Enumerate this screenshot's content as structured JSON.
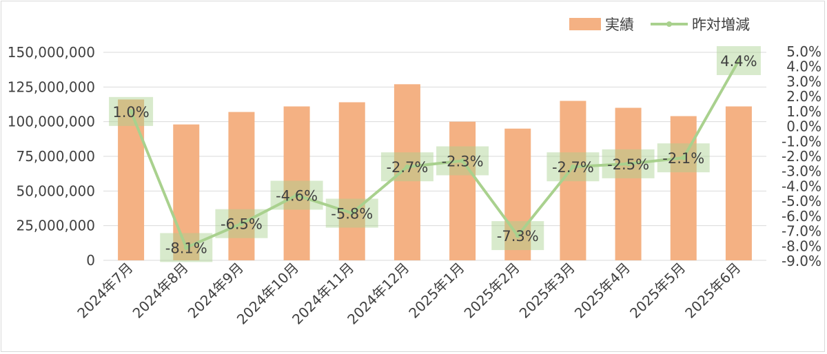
{
  "chart_data": {
    "type": "bar",
    "categories": [
      "2024年7月",
      "2024年8月",
      "2024年9月",
      "2024年10月",
      "2024年11月",
      "2024年12月",
      "2025年1月",
      "2025年2月",
      "2025年3月",
      "2025年4月",
      "2025年5月",
      "2025年6月"
    ],
    "series": [
      {
        "name": "実績",
        "type": "bar",
        "axis": "left",
        "color": "#f4b183",
        "values": [
          116000000,
          98000000,
          107000000,
          111000000,
          114000000,
          127000000,
          100000000,
          95000000,
          115000000,
          110000000,
          104000000,
          111000000
        ]
      },
      {
        "name": "昨対増減",
        "type": "line",
        "axis": "right",
        "color": "#a9d18e",
        "values": [
          1.0,
          -8.1,
          -6.5,
          -4.6,
          -5.8,
          -2.7,
          -2.3,
          -7.3,
          -2.7,
          -2.5,
          -2.1,
          4.4
        ],
        "data_labels": [
          "1.0%",
          "-8.1%",
          "-6.5%",
          "-4.6%",
          "-5.8%",
          "-2.7%",
          "-2.3%",
          "-7.3%",
          "-2.7%",
          "-2.5%",
          "-2.1%",
          "4.4%"
        ]
      }
    ],
    "y_left": {
      "ylim": [
        0,
        150000000
      ],
      "ticks": [
        0,
        25000000,
        50000000,
        75000000,
        100000000,
        125000000,
        150000000
      ],
      "tick_labels": [
        "0",
        "25,000,000",
        "50,000,000",
        "75,000,000",
        "100,000,000",
        "125,000,000",
        "150,000,000"
      ]
    },
    "y_right": {
      "ylim": [
        -9.0,
        5.0
      ],
      "ticks": [
        5.0,
        4.0,
        3.0,
        2.0,
        1.0,
        0.0,
        -1.0,
        -2.0,
        -3.0,
        -4.0,
        -5.0,
        -6.0,
        -7.0,
        -8.0,
        -9.0
      ],
      "tick_labels": [
        "5.0%",
        "4.0%",
        "3.0%",
        "2.0%",
        "1.0%",
        "0.0%",
        "-1.0%",
        "-2.0%",
        "-3.0%",
        "-4.0%",
        "-5.0%",
        "-6.0%",
        "-7.0%",
        "-8.0%",
        "-9.0%"
      ]
    },
    "grid": true,
    "legend": "top-right",
    "title": "",
    "xlabel": "",
    "ylabel": ""
  },
  "legend": {
    "bar_label": "実績",
    "line_label": "昨対増減"
  }
}
